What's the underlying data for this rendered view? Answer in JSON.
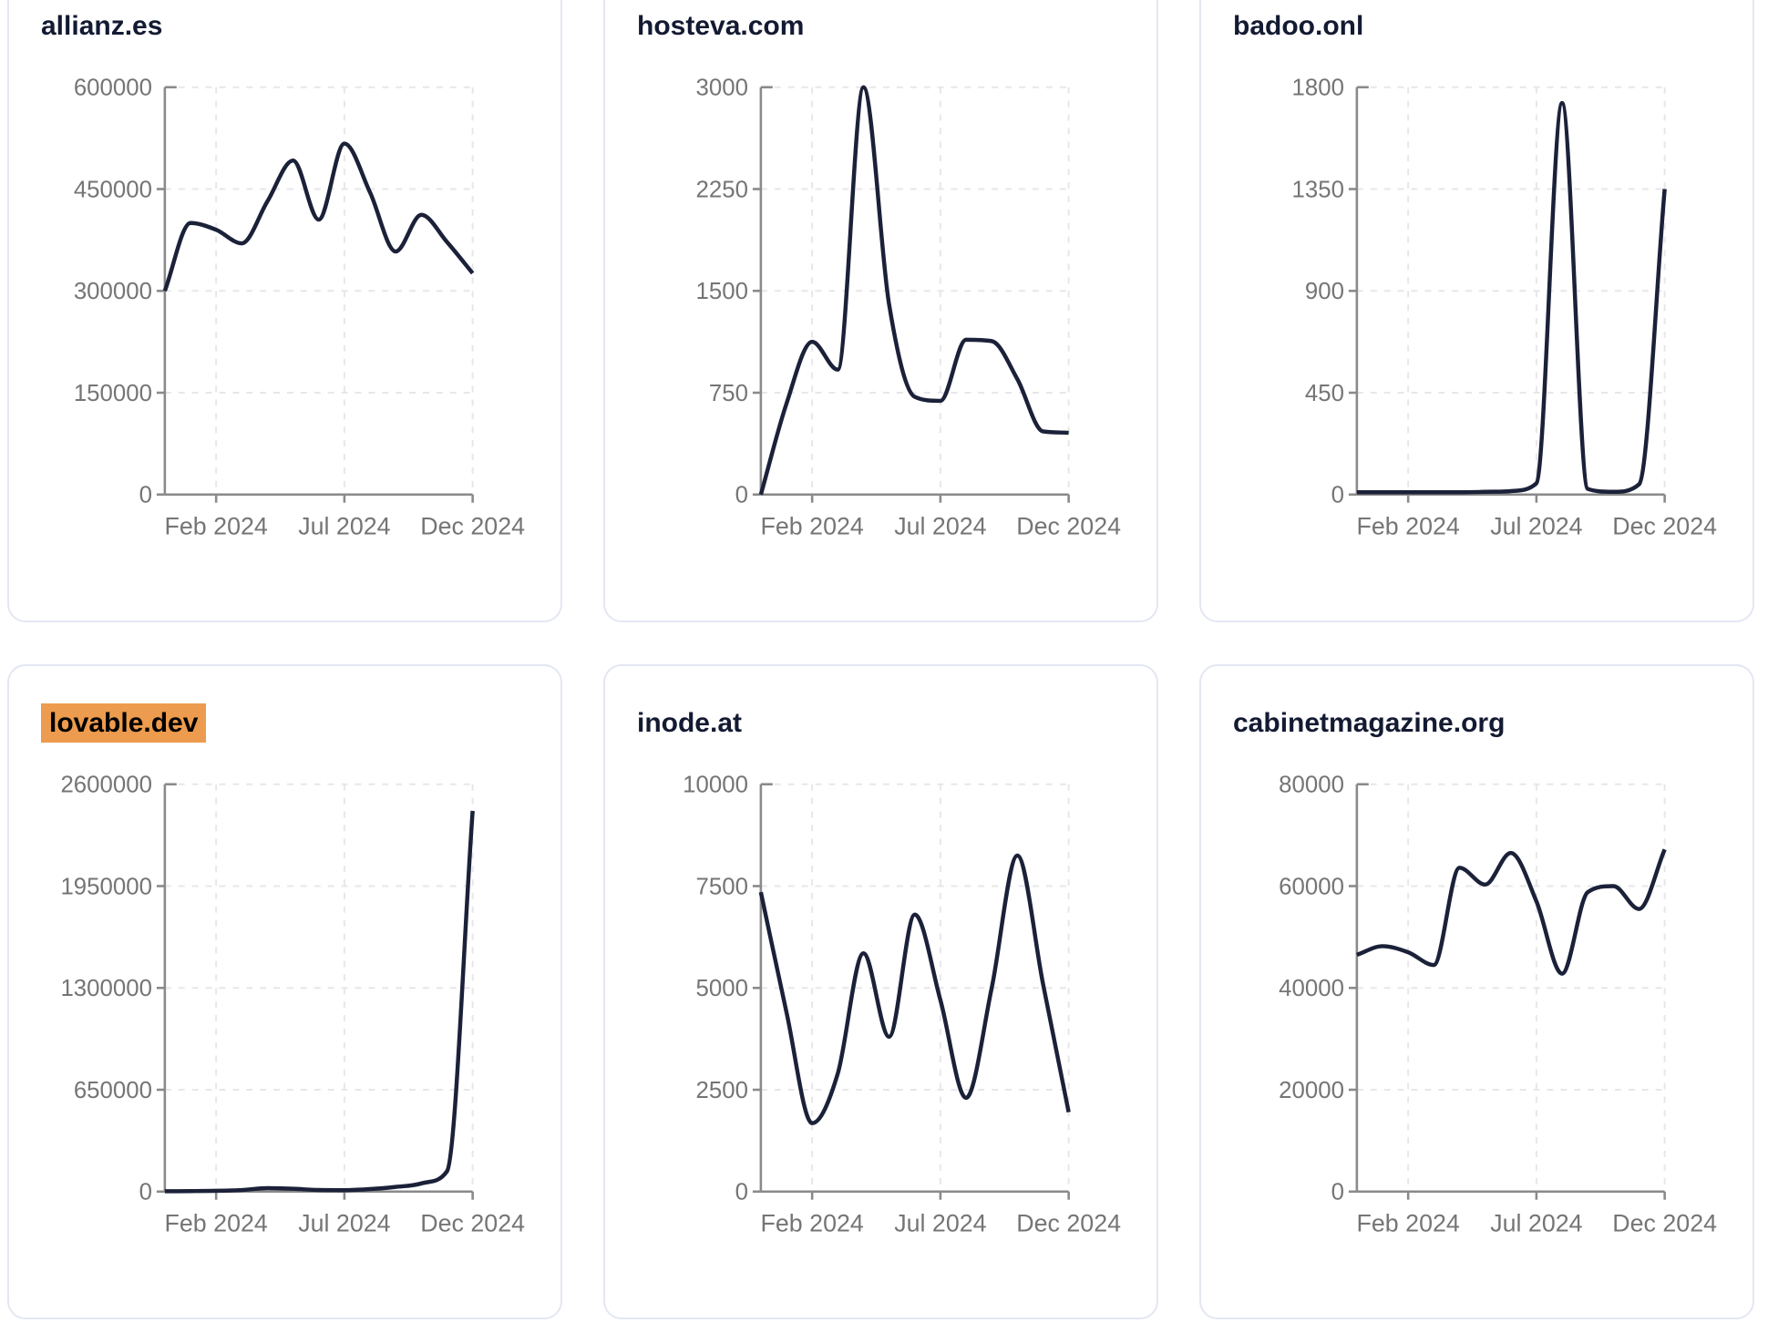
{
  "theme": {
    "page_bg": "#ffffff",
    "card_bg": "#ffffff",
    "card_border": "#e3e7f2",
    "title_color": "#131a32",
    "line_color": "#1b2138",
    "axis_color": "#8a8a8a",
    "grid_color": "#e7e7ea",
    "tick_label_color": "#757575",
    "highlight_bg": "#ed9b4e",
    "highlight_text": "#000000"
  },
  "x_months": [
    "Dec 2023",
    "Jan 2024",
    "Feb 2024",
    "Mar 2024",
    "Apr 2024",
    "May 2024",
    "Jun 2024",
    "Jul 2024",
    "Aug 2024",
    "Sep 2024",
    "Oct 2024",
    "Nov 2024",
    "Dec 2024"
  ],
  "chart_data": [
    {
      "type": "line",
      "title": "allianz.es",
      "title_highlighted": false,
      "x": [
        "Dec 2023",
        "Jan 2024",
        "Feb 2024",
        "Mar 2024",
        "Apr 2024",
        "May 2024",
        "Jun 2024",
        "Jul 2024",
        "Aug 2024",
        "Sep 2024",
        "Oct 2024",
        "Nov 2024",
        "Dec 2024"
      ],
      "values": [
        300000,
        400000,
        390000,
        370000,
        432000,
        492000,
        405000,
        517000,
        445000,
        358000,
        412000,
        372000,
        326000
      ],
      "ylim": [
        0,
        600000
      ],
      "ymax": 600000,
      "y_ticks": [
        "600000",
        "450000",
        "300000",
        "150000",
        "0"
      ],
      "x_tick_labels": [
        "Feb 2024",
        "Jul 2024",
        "Dec 2024"
      ],
      "x_tick_month_index": [
        2,
        7,
        12
      ],
      "grid": "dashed",
      "legend": "none"
    },
    {
      "type": "line",
      "title": "hosteva.com",
      "title_highlighted": false,
      "x": [
        "Dec 2023",
        "Jan 2024",
        "Feb 2024",
        "Mar 2024",
        "Apr 2024",
        "May 2024",
        "Jun 2024",
        "Jul 2024",
        "Aug 2024",
        "Sep 2024",
        "Oct 2024",
        "Nov 2024",
        "Dec 2024"
      ],
      "values": [
        0,
        670,
        1125,
        920,
        3000,
        1400,
        720,
        690,
        1140,
        1130,
        850,
        465,
        455
      ],
      "ylim": [
        0,
        3000
      ],
      "ymax": 3000,
      "y_ticks": [
        "3000",
        "2250",
        "1500",
        "750",
        "0"
      ],
      "x_tick_labels": [
        "Feb 2024",
        "Jul 2024",
        "Dec 2024"
      ],
      "x_tick_month_index": [
        2,
        7,
        12
      ],
      "grid": "dashed",
      "legend": "none"
    },
    {
      "type": "line",
      "title": "badoo.onl",
      "title_highlighted": false,
      "x": [
        "Dec 2023",
        "Jan 2024",
        "Feb 2024",
        "Mar 2024",
        "Apr 2024",
        "May 2024",
        "Jun 2024",
        "Jul 2024",
        "Aug 2024",
        "Sep 2024",
        "Oct 2024",
        "Nov 2024",
        "Dec 2024"
      ],
      "values": [
        10,
        10,
        10,
        10,
        10,
        12,
        15,
        50,
        1730,
        25,
        12,
        45,
        1350
      ],
      "ylim": [
        0,
        1800
      ],
      "ymax": 1800,
      "y_ticks": [
        "1800",
        "1350",
        "900",
        "450",
        "0"
      ],
      "x_tick_labels": [
        "Feb 2024",
        "Jul 2024",
        "Dec 2024"
      ],
      "x_tick_month_index": [
        2,
        7,
        12
      ],
      "grid": "dashed",
      "legend": "none"
    },
    {
      "type": "line",
      "title": "lovable.dev",
      "title_highlighted": true,
      "x": [
        "Dec 2023",
        "Jan 2024",
        "Feb 2024",
        "Mar 2024",
        "Apr 2024",
        "May 2024",
        "Jun 2024",
        "Jul 2024",
        "Aug 2024",
        "Sep 2024",
        "Oct 2024",
        "Nov 2024",
        "Dec 2024"
      ],
      "values": [
        2000,
        3000,
        5000,
        10000,
        22000,
        18000,
        10000,
        9000,
        16000,
        30000,
        52000,
        130000,
        2430000
      ],
      "ylim": [
        0,
        2600000
      ],
      "ymax": 2600000,
      "y_ticks": [
        "2600000",
        "1950000",
        "1300000",
        "650000",
        "0"
      ],
      "x_tick_labels": [
        "Feb 2024",
        "Jul 2024",
        "Dec 2024"
      ],
      "x_tick_month_index": [
        2,
        7,
        12
      ],
      "grid": "dashed",
      "legend": "none"
    },
    {
      "type": "line",
      "title": "inode.at",
      "title_highlighted": false,
      "x": [
        "Dec 2023",
        "Jan 2024",
        "Feb 2024",
        "Mar 2024",
        "Apr 2024",
        "May 2024",
        "Jun 2024",
        "Jul 2024",
        "Aug 2024",
        "Sep 2024",
        "Oct 2024",
        "Nov 2024",
        "Dec 2024"
      ],
      "values": [
        7350,
        4400,
        1680,
        2900,
        5850,
        3800,
        6800,
        4700,
        2300,
        5000,
        8250,
        5100,
        1950
      ],
      "ylim": [
        0,
        10000
      ],
      "ymax": 10000,
      "y_ticks": [
        "10000",
        "7500",
        "5000",
        "2500",
        "0"
      ],
      "x_tick_labels": [
        "Feb 2024",
        "Jul 2024",
        "Dec 2024"
      ],
      "x_tick_month_index": [
        2,
        7,
        12
      ],
      "grid": "dashed",
      "legend": "none"
    },
    {
      "type": "line",
      "title": "cabinetmagazine.org",
      "title_highlighted": false,
      "x": [
        "Dec 2023",
        "Jan 2024",
        "Feb 2024",
        "Mar 2024",
        "Apr 2024",
        "May 2024",
        "Jun 2024",
        "Jul 2024",
        "Aug 2024",
        "Sep 2024",
        "Oct 2024",
        "Nov 2024",
        "Dec 2024"
      ],
      "values": [
        46500,
        48200,
        47000,
        44500,
        63600,
        60300,
        66500,
        57000,
        42800,
        58800,
        60000,
        55500,
        67200
      ],
      "ylim": [
        0,
        80000
      ],
      "ymax": 80000,
      "y_ticks": [
        "80000",
        "60000",
        "40000",
        "20000",
        "0"
      ],
      "x_tick_labels": [
        "Feb 2024",
        "Jul 2024",
        "Dec 2024"
      ],
      "x_tick_month_index": [
        2,
        7,
        12
      ],
      "grid": "dashed",
      "legend": "none"
    }
  ]
}
